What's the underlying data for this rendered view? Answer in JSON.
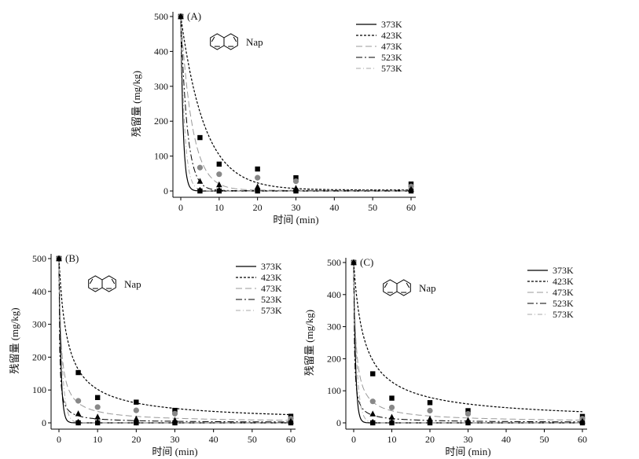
{
  "chart_data": [
    {
      "type": "scatter",
      "panel_label": "(A)",
      "compound": "Nap",
      "xlabel": "时间 (min)",
      "ylabel": "残留量 (mg/kg)",
      "xlim": [
        0,
        60
      ],
      "ylim": [
        0,
        500
      ],
      "xticks": [
        0,
        10,
        20,
        30,
        40,
        50,
        60
      ],
      "yticks": [
        0,
        100,
        200,
        300,
        400,
        500
      ],
      "x": [
        0,
        5,
        10,
        20,
        30,
        60
      ],
      "legend_position": "top-right",
      "grid": false,
      "series": [
        {
          "name": "373K",
          "marker": "square",
          "values": [
            500,
            0,
            0,
            0,
            0,
            0
          ],
          "fit_k": 1.6,
          "fit_floor": 0
        },
        {
          "name": "423K",
          "marker": "square",
          "values": [
            500,
            153,
            77,
            63,
            38,
            20
          ],
          "fit_k": 0.16,
          "fit_floor": 3
        },
        {
          "name": "473K",
          "marker": "circle",
          "values": [
            500,
            67,
            48,
            38,
            28,
            13
          ],
          "fit_k": 0.33,
          "fit_floor": 2
        },
        {
          "name": "523K",
          "marker": "triangle",
          "values": [
            500,
            28,
            18,
            12,
            8,
            5
          ],
          "fit_k": 0.6,
          "fit_floor": 1
        },
        {
          "name": "573K",
          "marker": "diamond",
          "values": [
            500,
            2,
            2,
            2,
            2,
            2
          ],
          "fit_k": 1.0,
          "fit_floor": 0
        }
      ]
    },
    {
      "type": "scatter",
      "panel_label": "(B)",
      "compound": "Nap",
      "xlabel": "时间 (min)",
      "ylabel": "残留量 (mg/kg)",
      "xlim": [
        0,
        60
      ],
      "ylim": [
        0,
        500
      ],
      "xticks": [
        0,
        10,
        20,
        30,
        40,
        50,
        60
      ],
      "yticks": [
        0,
        100,
        200,
        300,
        400,
        500
      ],
      "x": [
        0,
        5,
        10,
        20,
        30,
        60
      ],
      "legend_position": "top-right",
      "grid": false,
      "series": [
        {
          "name": "373K",
          "marker": "square",
          "values": [
            500,
            0,
            0,
            0,
            0,
            0
          ],
          "fit_type": "exp",
          "fit_k": 2.0
        },
        {
          "name": "423K",
          "marker": "square",
          "values": [
            500,
            153,
            77,
            63,
            38,
            20
          ],
          "fit_type": "power",
          "fit_a": 0.55,
          "fit_n": 0.85
        },
        {
          "name": "473K",
          "marker": "circle",
          "values": [
            500,
            67,
            48,
            38,
            28,
            13
          ],
          "fit_type": "power",
          "fit_a": 2.2,
          "fit_n": 0.85
        },
        {
          "name": "523K",
          "marker": "triangle",
          "values": [
            500,
            28,
            18,
            12,
            8,
            5
          ],
          "fit_type": "power",
          "fit_a": 8,
          "fit_n": 0.85
        },
        {
          "name": "573K",
          "marker": "diamond",
          "values": [
            500,
            2,
            2,
            2,
            2,
            2
          ],
          "fit_type": "exp",
          "fit_k": 1.2
        }
      ]
    },
    {
      "type": "scatter",
      "panel_label": "(C)",
      "compound": "Nap",
      "xlabel": "时间 (min)",
      "ylabel": "残留量 (mg/kg)",
      "xlim": [
        0,
        60
      ],
      "ylim": [
        0,
        500
      ],
      "xticks": [
        0,
        10,
        20,
        30,
        40,
        50,
        60
      ],
      "yticks": [
        0,
        100,
        200,
        300,
        400,
        500
      ],
      "x": [
        0,
        5,
        10,
        20,
        30,
        60
      ],
      "legend_position": "top-right",
      "grid": false,
      "series": [
        {
          "name": "373K",
          "marker": "square",
          "values": [
            500,
            0,
            0,
            0,
            0,
            0
          ],
          "fit_type": "exp",
          "fit_k": 2.0
        },
        {
          "name": "423K",
          "marker": "square",
          "values": [
            500,
            153,
            77,
            63,
            38,
            20
          ],
          "fit_type": "power",
          "fit_a": 0.45,
          "fit_n": 0.8
        },
        {
          "name": "473K",
          "marker": "circle",
          "values": [
            500,
            67,
            48,
            38,
            28,
            13
          ],
          "fit_type": "power",
          "fit_a": 2.0,
          "fit_n": 0.85
        },
        {
          "name": "523K",
          "marker": "triangle",
          "values": [
            500,
            28,
            18,
            12,
            8,
            5
          ],
          "fit_type": "power",
          "fit_a": 7,
          "fit_n": 0.85
        },
        {
          "name": "573K",
          "marker": "diamond",
          "values": [
            500,
            2,
            2,
            2,
            2,
            2
          ],
          "fit_type": "exp",
          "fit_k": 1.2
        }
      ]
    }
  ]
}
